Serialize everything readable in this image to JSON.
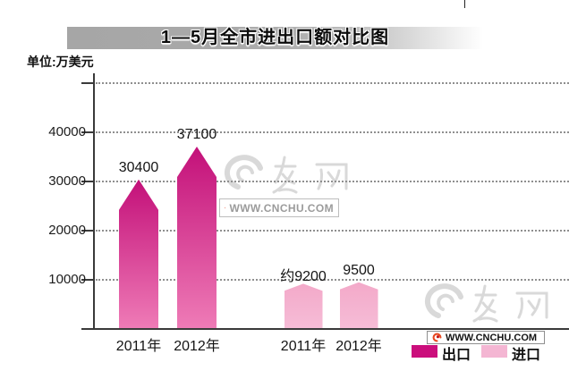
{
  "title": "1—5月全市进出口额对比图",
  "unit_label": "单位:万美元",
  "legend": [
    {
      "key": "export",
      "label": "出口",
      "color": "#cb0e7c"
    },
    {
      "key": "import",
      "label": "进口",
      "color": "#f4b6d3"
    }
  ],
  "watermark": {
    "site": "WWW.CNCHU.COM",
    "logo_icon": "swirl-brush-logo",
    "badge_icon": "swirl-icon"
  },
  "colors": {
    "export_top": "#c31079",
    "export_bottom": "#ef7cb7",
    "import_top": "#f3a9c9",
    "import_bottom": "#f6bdd7",
    "axis": "#3a3a3a",
    "grid": "#8f8f8f",
    "banner_gray": "#a8a8a8",
    "watermark_gray": "#d9d9d9",
    "badge_red": "#e8481f"
  },
  "chart_data": {
    "type": "bar",
    "title": "1—5月全市进出口额对比图",
    "unit": "万美元",
    "categories": [
      "2011年",
      "2012年"
    ],
    "series": [
      {
        "key": "export",
        "name": "出口",
        "values": [
          30400,
          37100
        ],
        "value_labels": [
          "30400",
          "37100"
        ]
      },
      {
        "key": "import",
        "name": "进口",
        "values": [
          9200,
          9500
        ],
        "value_labels": [
          "约9200",
          "9500"
        ]
      }
    ],
    "yticks": [
      10000,
      20000,
      30000,
      40000
    ],
    "ylim": [
      0,
      50000
    ],
    "grid": true,
    "legend_position": "bottom-right"
  }
}
